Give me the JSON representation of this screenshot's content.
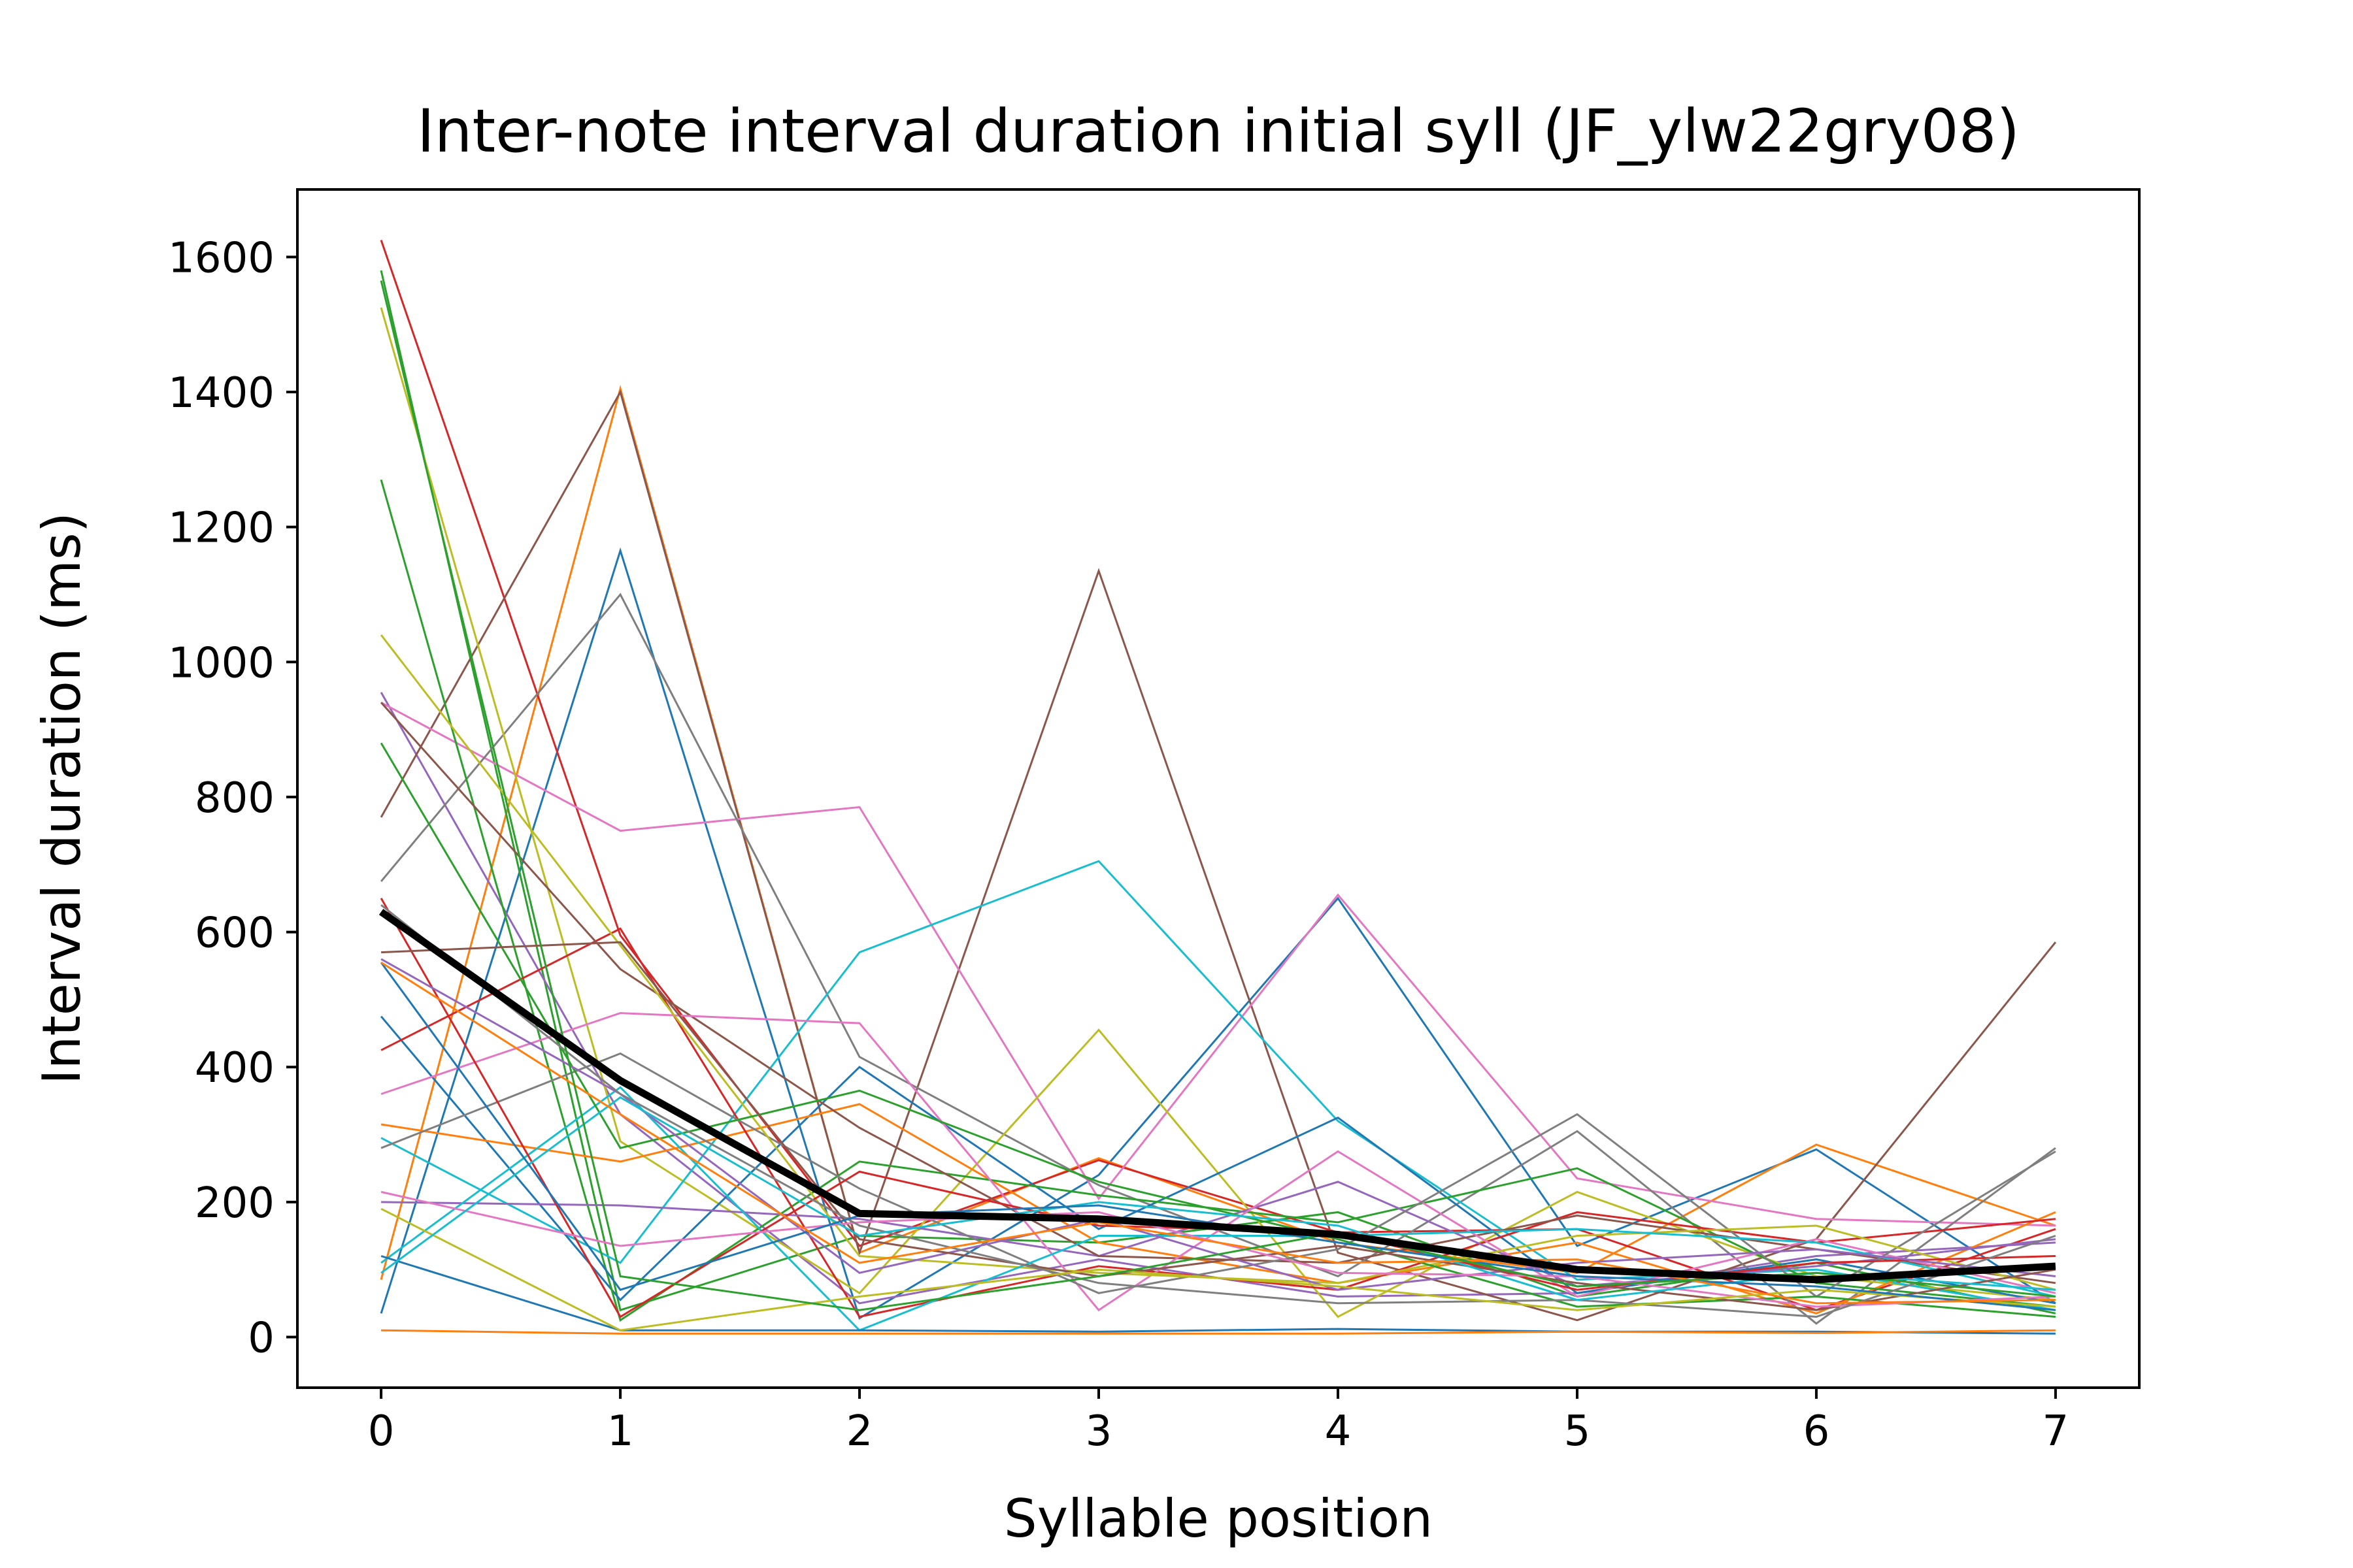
{
  "chart_data": {
    "type": "line",
    "title": "Inter-note interval duration initial syll (JF_ylw22gry08)",
    "xlabel": "Syllable position",
    "ylabel": "Interval duration (ms)",
    "x": [
      0,
      1,
      2,
      3,
      4,
      5,
      6,
      7
    ],
    "xlim": [
      -0.35,
      7.35
    ],
    "ylim": [
      -75,
      1700
    ],
    "xticks": [
      "0",
      "1",
      "2",
      "3",
      "4",
      "5",
      "6",
      "7"
    ],
    "yticks": [
      "0",
      "200",
      "400",
      "600",
      "800",
      "1000",
      "1200",
      "1400",
      "1600"
    ],
    "grid": false,
    "legend": "none",
    "mean": {
      "values": [
        630,
        380,
        183,
        175,
        152,
        100,
        85,
        105
      ],
      "color": "#000000"
    },
    "series": [
      {
        "color": "#1f77b4",
        "values": [
          35,
          1165,
          28,
          240,
          650,
          135,
          278,
          50
        ]
      },
      {
        "color": "#ff7f0e",
        "values": [
          85,
          1405,
          125,
          265,
          140,
          95,
          285,
          165
        ]
      },
      {
        "color": "#2ca02c",
        "values": [
          1580,
          40,
          150,
          140,
          185,
          60,
          110,
          35
        ]
      },
      {
        "color": "#d62728",
        "values": [
          1625,
          595,
          135,
          262,
          155,
          160,
          40,
          160
        ]
      },
      {
        "color": "#9467bd",
        "values": [
          955,
          330,
          50,
          115,
          60,
          65,
          120,
          140
        ]
      },
      {
        "color": "#8c564b",
        "values": [
          770,
          1400,
          125,
          1135,
          125,
          25,
          145,
          585
        ]
      },
      {
        "color": "#e377c2",
        "values": [
          940,
          750,
          785,
          205,
          655,
          235,
          175,
          165
        ]
      },
      {
        "color": "#7f7f7f",
        "values": [
          675,
          1100,
          415,
          225,
          90,
          305,
          20,
          280
        ]
      },
      {
        "color": "#bcbd22",
        "values": [
          1525,
          290,
          65,
          455,
          30,
          215,
          90,
          55
        ]
      },
      {
        "color": "#17becf",
        "values": [
          295,
          110,
          570,
          705,
          320,
          85,
          100,
          40
        ]
      },
      {
        "color": "#1f77b4",
        "values": [
          475,
          55,
          400,
          160,
          325,
          65,
          115,
          50
        ]
      },
      {
        "color": "#ff7f0e",
        "values": [
          315,
          260,
          345,
          140,
          80,
          140,
          35,
          185
        ]
      },
      {
        "color": "#2ca02c",
        "values": [
          1270,
          25,
          260,
          210,
          170,
          250,
          80,
          45
        ]
      },
      {
        "color": "#d62728",
        "values": [
          425,
          605,
          30,
          105,
          70,
          185,
          140,
          175
        ]
      },
      {
        "color": "#9467bd",
        "values": [
          200,
          195,
          175,
          120,
          230,
          75,
          105,
          145
        ]
      },
      {
        "color": "#8c564b",
        "values": [
          940,
          545,
          310,
          120,
          110,
          180,
          130,
          80
        ]
      },
      {
        "color": "#e377c2",
        "values": [
          360,
          480,
          465,
          40,
          275,
          60,
          145,
          65
        ]
      },
      {
        "color": "#7f7f7f",
        "values": [
          280,
          420,
          220,
          65,
          130,
          330,
          60,
          275
        ]
      },
      {
        "color": "#bcbd22",
        "values": [
          1040,
          580,
          120,
          95,
          80,
          150,
          165,
          70
        ]
      },
      {
        "color": "#17becf",
        "values": [
          110,
          370,
          10,
          150,
          150,
          160,
          140,
          60
        ]
      },
      {
        "color": "#1f77b4",
        "values": [
          120,
          10,
          10,
          8,
          12,
          8,
          8,
          5
        ]
      },
      {
        "color": "#ff7f0e",
        "values": [
          10,
          5,
          5,
          5,
          5,
          8,
          6,
          10
        ]
      },
      {
        "color": "#2ca02c",
        "values": [
          880,
          280,
          365,
          230,
          145,
          45,
          60,
          30
        ]
      },
      {
        "color": "#d62728",
        "values": [
          650,
          30,
          245,
          165,
          155,
          70,
          110,
          120
        ]
      },
      {
        "color": "#9467bd",
        "values": [
          560,
          360,
          95,
          175,
          70,
          110,
          130,
          90
        ]
      },
      {
        "color": "#8c564b",
        "values": [
          570,
          585,
          145,
          90,
          135,
          80,
          40,
          100
        ]
      },
      {
        "color": "#e377c2",
        "values": [
          215,
          135,
          170,
          185,
          95,
          90,
          45,
          60
        ]
      },
      {
        "color": "#7f7f7f",
        "values": [
          640,
          360,
          165,
          80,
          50,
          55,
          30,
          150
        ]
      },
      {
        "color": "#bcbd22",
        "values": [
          190,
          10,
          60,
          100,
          75,
          40,
          70,
          45
        ]
      },
      {
        "color": "#17becf",
        "values": [
          95,
          355,
          150,
          200,
          165,
          55,
          95,
          70
        ]
      },
      {
        "color": "#1f77b4",
        "values": [
          555,
          70,
          180,
          195,
          140,
          90,
          75,
          40
        ]
      },
      {
        "color": "#ff7f0e",
        "values": [
          555,
          330,
          110,
          170,
          110,
          115,
          50,
          55
        ]
      },
      {
        "color": "#2ca02c",
        "values": [
          1565,
          90,
          40,
          90,
          155,
          75,
          95,
          60
        ]
      }
    ]
  }
}
